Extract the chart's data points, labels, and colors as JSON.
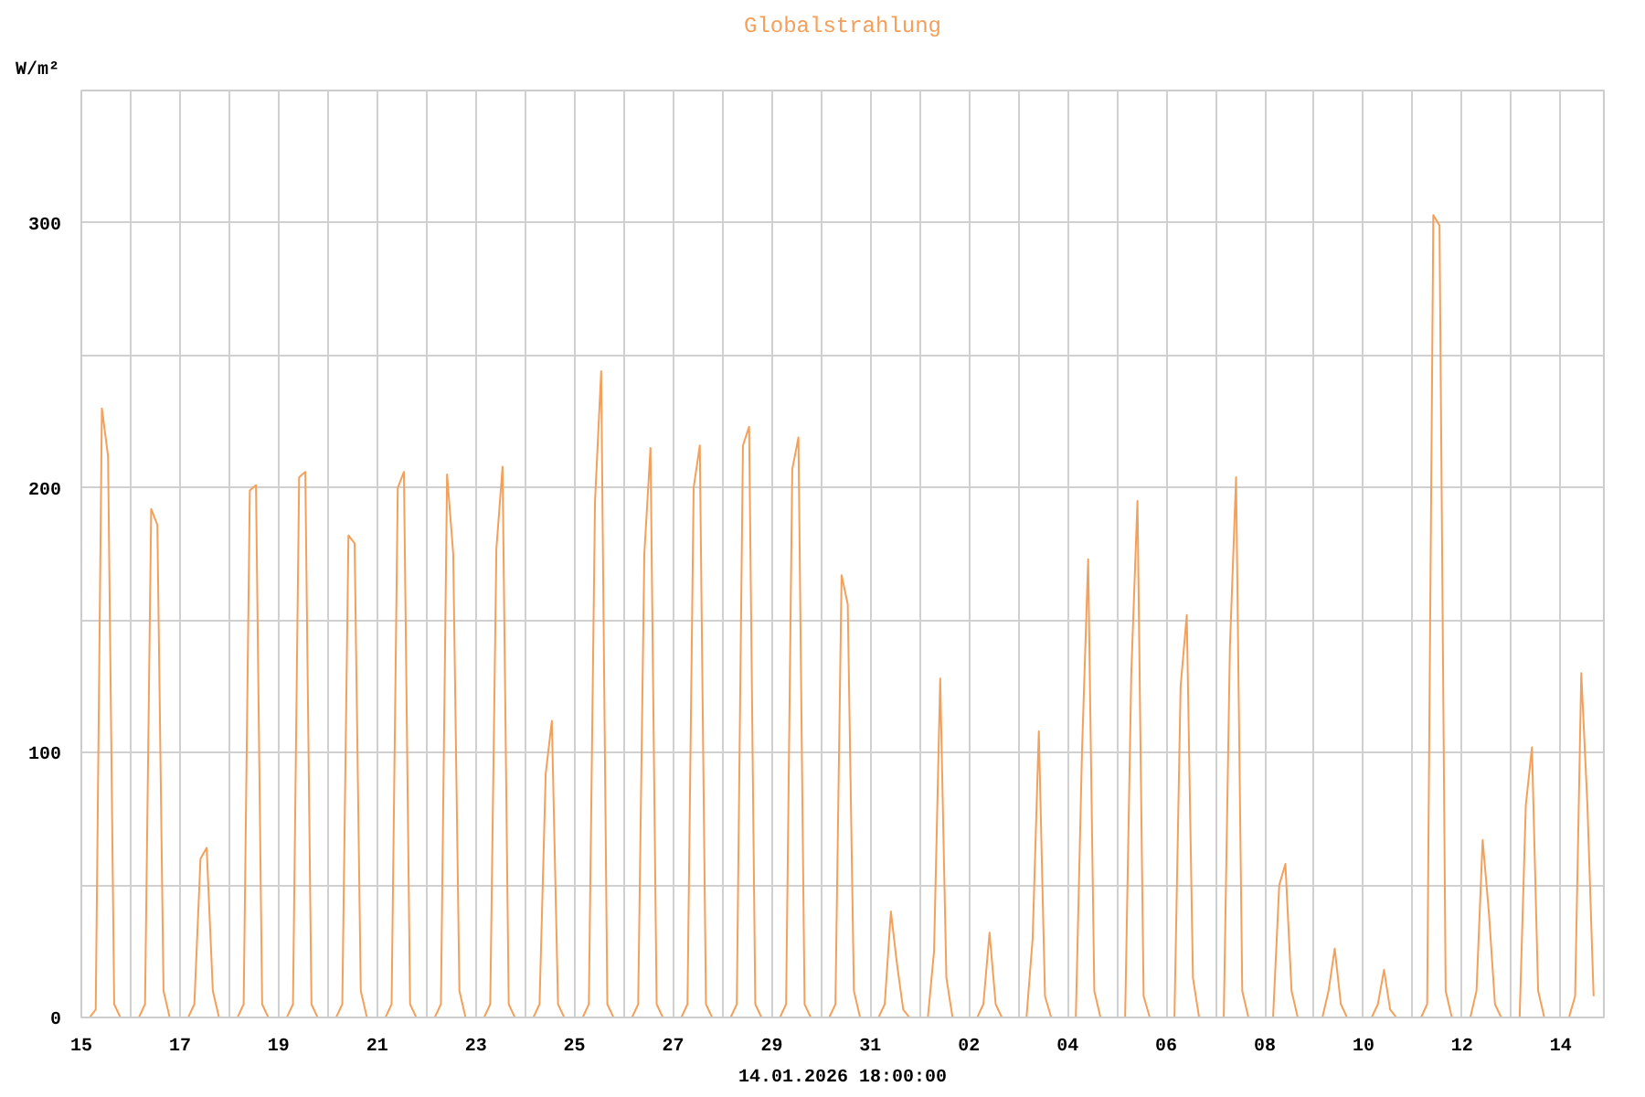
{
  "chart_data": {
    "type": "line",
    "title": "Globalstrahlung",
    "ylabel": "W/m²",
    "annotations": [
      "14.01.2026 18:00:00"
    ],
    "xlim": [
      "2025-12-15",
      "2026-01-14T21:00"
    ],
    "ylim": [
      0,
      350
    ],
    "yticks": [
      0,
      {
        "value": 50,
        "label": null
      },
      100,
      {
        "value": 150,
        "label": null
      },
      200,
      {
        "value": 250,
        "label": null
      },
      300,
      {
        "value": 350,
        "label": null
      }
    ],
    "xticks": [
      {
        "value": "2025-12-15",
        "label": "15"
      },
      {
        "value": "2025-12-16",
        "label": null
      },
      {
        "value": "2025-12-17",
        "label": "17"
      },
      {
        "value": "2025-12-18",
        "label": null
      },
      {
        "value": "2025-12-19",
        "label": "19"
      },
      {
        "value": "2025-12-20",
        "label": null
      },
      {
        "value": "2025-12-21",
        "label": "21"
      },
      {
        "value": "2025-12-22",
        "label": null
      },
      {
        "value": "2025-12-23",
        "label": "23"
      },
      {
        "value": "2025-12-24",
        "label": null
      },
      {
        "value": "2025-12-25",
        "label": "25"
      },
      {
        "value": "2025-12-26",
        "label": null
      },
      {
        "value": "2025-12-27",
        "label": "27"
      },
      {
        "value": "2025-12-28",
        "label": null
      },
      {
        "value": "2025-12-29",
        "label": "29"
      },
      {
        "value": "2025-12-30",
        "label": null
      },
      {
        "value": "2025-12-31",
        "label": "31"
      },
      {
        "value": "2026-01-01",
        "label": null
      },
      {
        "value": "2026-01-02",
        "label": "02"
      },
      {
        "value": "2026-01-03",
        "label": null
      },
      {
        "value": "2026-01-04",
        "label": "04"
      },
      {
        "value": "2026-01-05",
        "label": null
      },
      {
        "value": "2026-01-06",
        "label": "06"
      },
      {
        "value": "2026-01-07",
        "label": null
      },
      {
        "value": "2026-01-08",
        "label": "08"
      },
      {
        "value": "2026-01-09",
        "label": null
      },
      {
        "value": "2026-01-10",
        "label": "10"
      },
      {
        "value": "2026-01-11",
        "label": null
      },
      {
        "value": "2026-01-12",
        "label": "12"
      },
      {
        "value": "2026-01-13",
        "label": null
      },
      {
        "value": "2026-01-14",
        "label": "14"
      }
    ],
    "grid": true,
    "marker": "none",
    "line_style": "solid",
    "series": [
      {
        "color": "#f5a05a",
        "x": [
          "2025-12-15T01:00",
          "2025-12-15T04:00",
          "2025-12-15T07:00",
          "2025-12-15T10:00",
          "2025-12-15T13:00",
          "2025-12-15T16:00",
          "2025-12-15T19:00",
          "2025-12-16T04:00",
          "2025-12-16T07:00",
          "2025-12-16T10:00",
          "2025-12-16T13:00",
          "2025-12-16T16:00",
          "2025-12-16T19:00",
          "2025-12-17T04:00",
          "2025-12-17T07:00",
          "2025-12-17T10:00",
          "2025-12-17T13:00",
          "2025-12-17T16:00",
          "2025-12-17T19:00",
          "2025-12-18T04:00",
          "2025-12-18T07:00",
          "2025-12-18T10:00",
          "2025-12-18T13:00",
          "2025-12-18T16:00",
          "2025-12-18T19:00",
          "2025-12-19T04:00",
          "2025-12-19T07:00",
          "2025-12-19T10:00",
          "2025-12-19T13:00",
          "2025-12-19T16:00",
          "2025-12-19T19:00",
          "2025-12-20T04:00",
          "2025-12-20T07:00",
          "2025-12-20T10:00",
          "2025-12-20T13:00",
          "2025-12-20T16:00",
          "2025-12-20T19:00",
          "2025-12-21T04:00",
          "2025-12-21T07:00",
          "2025-12-21T10:00",
          "2025-12-21T13:00",
          "2025-12-21T16:00",
          "2025-12-21T19:00",
          "2025-12-22T04:00",
          "2025-12-22T07:00",
          "2025-12-22T10:00",
          "2025-12-22T13:00",
          "2025-12-22T16:00",
          "2025-12-22T19:00",
          "2025-12-23T04:00",
          "2025-12-23T07:00",
          "2025-12-23T10:00",
          "2025-12-23T13:00",
          "2025-12-23T16:00",
          "2025-12-23T19:00",
          "2025-12-24T04:00",
          "2025-12-24T07:00",
          "2025-12-24T10:00",
          "2025-12-24T13:00",
          "2025-12-24T16:00",
          "2025-12-24T19:00",
          "2025-12-25T04:00",
          "2025-12-25T07:00",
          "2025-12-25T10:00",
          "2025-12-25T13:00",
          "2025-12-25T16:00",
          "2025-12-25T19:00",
          "2025-12-26T04:00",
          "2025-12-26T07:00",
          "2025-12-26T10:00",
          "2025-12-26T13:00",
          "2025-12-26T16:00",
          "2025-12-26T19:00",
          "2025-12-27T04:00",
          "2025-12-27T07:00",
          "2025-12-27T10:00",
          "2025-12-27T13:00",
          "2025-12-27T16:00",
          "2025-12-27T19:00",
          "2025-12-28T04:00",
          "2025-12-28T07:00",
          "2025-12-28T10:00",
          "2025-12-28T13:00",
          "2025-12-28T16:00",
          "2025-12-28T19:00",
          "2025-12-29T04:00",
          "2025-12-29T07:00",
          "2025-12-29T10:00",
          "2025-12-29T13:00",
          "2025-12-29T16:00",
          "2025-12-29T19:00",
          "2025-12-30T04:00",
          "2025-12-30T07:00",
          "2025-12-30T10:00",
          "2025-12-30T13:00",
          "2025-12-30T16:00",
          "2025-12-30T19:00",
          "2025-12-31T04:00",
          "2025-12-31T07:00",
          "2025-12-31T10:00",
          "2025-12-31T13:00",
          "2025-12-31T16:00",
          "2025-12-31T19:00",
          "2026-01-01T04:00",
          "2026-01-01T07:00",
          "2026-01-01T10:00",
          "2026-01-01T13:00",
          "2026-01-01T16:00",
          "2026-01-01T19:00",
          "2026-01-02T04:00",
          "2026-01-02T07:00",
          "2026-01-02T10:00",
          "2026-01-02T13:00",
          "2026-01-02T16:00",
          "2026-01-02T19:00",
          "2026-01-03T04:00",
          "2026-01-03T07:00",
          "2026-01-03T10:00",
          "2026-01-03T13:00",
          "2026-01-03T16:00",
          "2026-01-03T19:00",
          "2026-01-04T04:00",
          "2026-01-04T07:00",
          "2026-01-04T10:00",
          "2026-01-04T13:00",
          "2026-01-04T16:00",
          "2026-01-04T19:00",
          "2026-01-05T04:00",
          "2026-01-05T07:00",
          "2026-01-05T10:00",
          "2026-01-05T13:00",
          "2026-01-05T16:00",
          "2026-01-05T19:00",
          "2026-01-06T04:00",
          "2026-01-06T07:00",
          "2026-01-06T10:00",
          "2026-01-06T13:00",
          "2026-01-06T16:00",
          "2026-01-06T19:00",
          "2026-01-07T04:00",
          "2026-01-07T07:00",
          "2026-01-07T10:00",
          "2026-01-07T13:00",
          "2026-01-07T16:00",
          "2026-01-07T19:00",
          "2026-01-08T04:00",
          "2026-01-08T07:00",
          "2026-01-08T10:00",
          "2026-01-08T13:00",
          "2026-01-08T16:00",
          "2026-01-08T19:00",
          "2026-01-09T04:00",
          "2026-01-09T07:00",
          "2026-01-09T10:00",
          "2026-01-09T13:00",
          "2026-01-09T16:00",
          "2026-01-09T19:00",
          "2026-01-10T04:00",
          "2026-01-10T07:00",
          "2026-01-10T10:00",
          "2026-01-10T13:00",
          "2026-01-10T16:00",
          "2026-01-10T19:00",
          "2026-01-11T04:00",
          "2026-01-11T07:00",
          "2026-01-11T10:00",
          "2026-01-11T13:00",
          "2026-01-11T16:00",
          "2026-01-11T19:00",
          "2026-01-12T04:00",
          "2026-01-12T07:00",
          "2026-01-12T10:00",
          "2026-01-12T13:00",
          "2026-01-12T16:00",
          "2026-01-12T19:00",
          "2026-01-13T04:00",
          "2026-01-13T07:00",
          "2026-01-13T10:00",
          "2026-01-13T13:00",
          "2026-01-13T16:00",
          "2026-01-13T19:00",
          "2026-01-14T04:00",
          "2026-01-14T07:00",
          "2026-01-14T10:00",
          "2026-01-14T13:00",
          "2026-01-14T16:00"
        ],
        "values": [
          0,
          0,
          3,
          230,
          212,
          5,
          0,
          0,
          5,
          192,
          186,
          10,
          0,
          0,
          5,
          60,
          64,
          10,
          0,
          0,
          5,
          199,
          201,
          5,
          0,
          0,
          5,
          204,
          206,
          5,
          0,
          0,
          5,
          182,
          179,
          10,
          0,
          0,
          5,
          200,
          206,
          5,
          0,
          0,
          5,
          205,
          175,
          10,
          0,
          0,
          5,
          177,
          208,
          5,
          0,
          0,
          5,
          92,
          112,
          5,
          0,
          0,
          5,
          195,
          244,
          5,
          0,
          0,
          5,
          175,
          215,
          5,
          0,
          0,
          5,
          200,
          216,
          5,
          0,
          0,
          5,
          216,
          223,
          5,
          0,
          0,
          5,
          207,
          219,
          5,
          0,
          0,
          5,
          167,
          156,
          10,
          0,
          0,
          5,
          40,
          20,
          3,
          0,
          0,
          25,
          128,
          15,
          0,
          0,
          0,
          5,
          32,
          5,
          0,
          0,
          0,
          30,
          108,
          8,
          0,
          0,
          0,
          100,
          173,
          10,
          0,
          0,
          0,
          130,
          195,
          8,
          0,
          0,
          0,
          125,
          152,
          15,
          0,
          0,
          0,
          140,
          204,
          10,
          0,
          0,
          0,
          50,
          58,
          10,
          0,
          0,
          0,
          10,
          26,
          5,
          0,
          0,
          0,
          5,
          18,
          3,
          0,
          0,
          0,
          5,
          303,
          299,
          10,
          0,
          0,
          10,
          67,
          40,
          5,
          0,
          0,
          80,
          102,
          10,
          0,
          0,
          0,
          8,
          130,
          80,
          8
        ]
      }
    ]
  }
}
